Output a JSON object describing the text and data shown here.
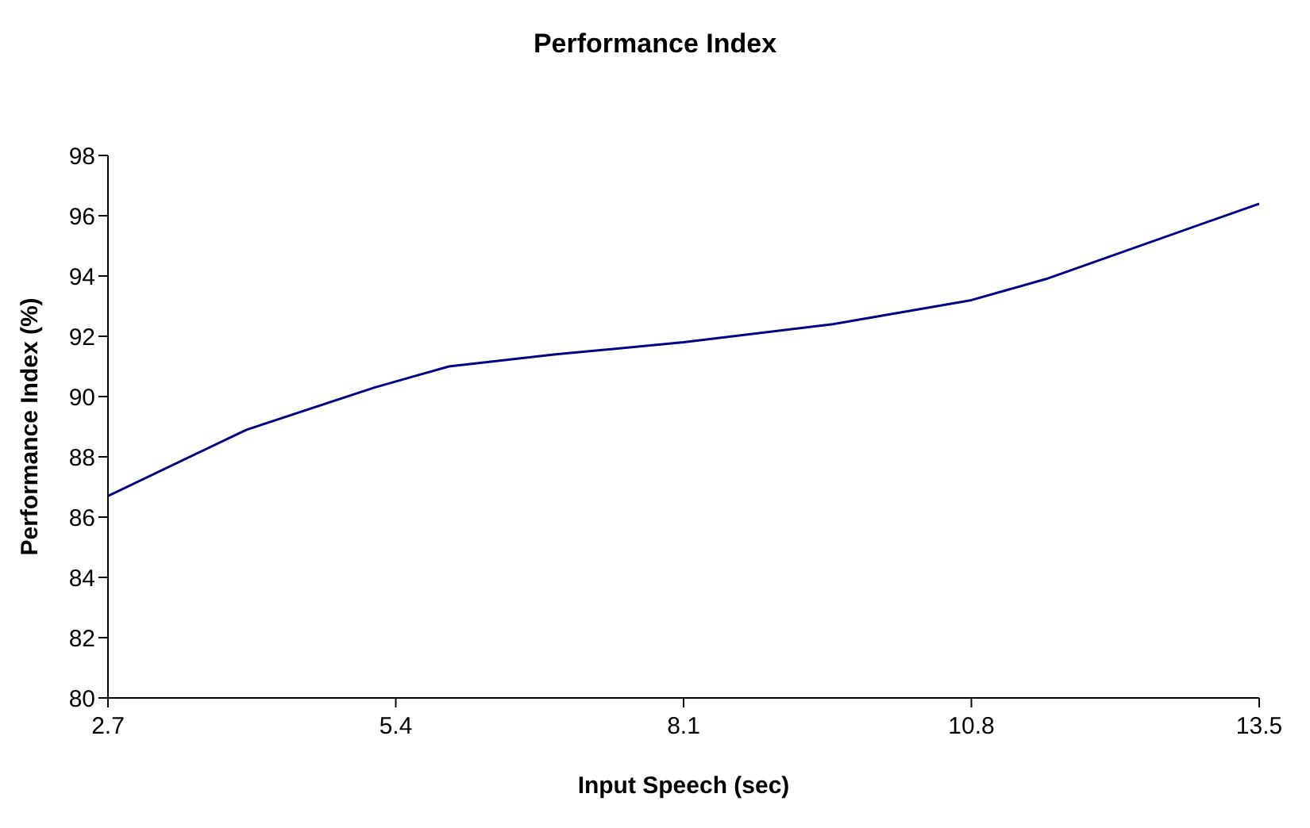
{
  "chart_data": {
    "type": "line",
    "title": "Performance Index",
    "xlabel": "Input Speech (sec)",
    "ylabel": "Performance Index (%)",
    "x": [
      2.7,
      4.0,
      5.2,
      5.9,
      6.9,
      8.1,
      9.5,
      10.8,
      11.5,
      13.5
    ],
    "series": [
      {
        "color": "#000080",
        "values": [
          86.7,
          88.9,
          90.3,
          91.0,
          91.4,
          91.8,
          92.4,
          93.2,
          93.9,
          96.4
        ]
      }
    ],
    "xlim": [
      2.7,
      13.5
    ],
    "xticks": [
      2.7,
      5.4,
      8.1,
      10.8,
      13.5
    ],
    "ylim": [
      80,
      98
    ],
    "yticks": [
      80,
      82,
      84,
      86,
      88,
      90,
      92,
      94,
      96,
      98
    ],
    "grid": false,
    "legend": false,
    "marker": "none",
    "line_style": "solid"
  }
}
